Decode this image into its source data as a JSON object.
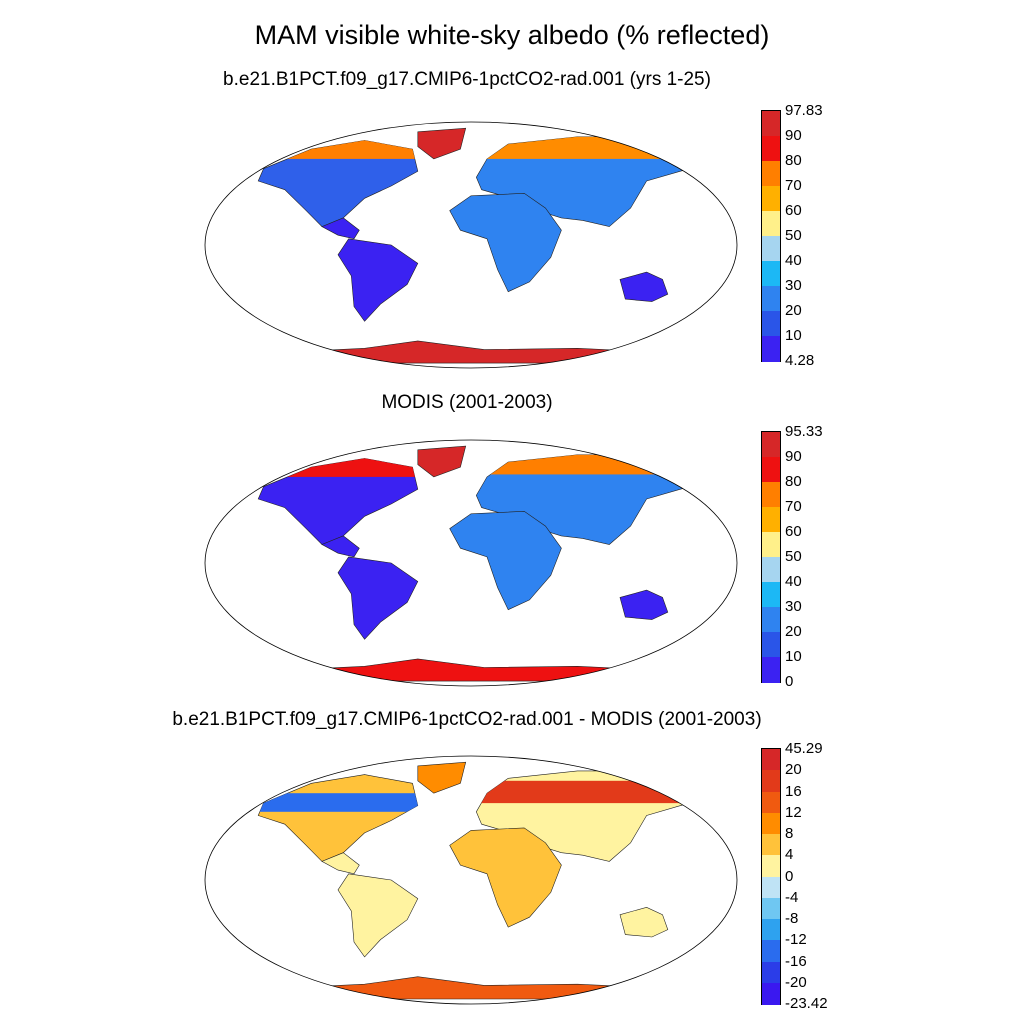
{
  "title": "MAM visible white-sky albedo (% reflected)",
  "panels": [
    {
      "id": "model",
      "title": "b.e21.B1PCT.f09_g17.CMIP6-1pctCO2-rad.001 (yrs 1-25)",
      "colorbar": {
        "labels": [
          "97.83",
          "90",
          "80",
          "70",
          "60",
          "50",
          "40",
          "30",
          "20",
          "10",
          "4.28"
        ],
        "colors": [
          "#d62728",
          "#ee1111",
          "#ff7f00",
          "#ffb000",
          "#fff08a",
          "#a6d5f0",
          "#1cb8f5",
          "#2f83f0",
          "#2a55e8",
          "#3b22f2"
        ]
      }
    },
    {
      "id": "obs",
      "title": "MODIS (2001-2003)",
      "colorbar": {
        "labels": [
          "95.33",
          "90",
          "80",
          "70",
          "60",
          "50",
          "40",
          "30",
          "20",
          "10",
          "0"
        ],
        "colors": [
          "#d62728",
          "#ee1111",
          "#ff7f00",
          "#ffb000",
          "#fff08a",
          "#a6d5f0",
          "#1cb8f5",
          "#2f83f0",
          "#2a55e8",
          "#3b22f2"
        ]
      }
    },
    {
      "id": "diff",
      "title": "b.e21.B1PCT.f09_g17.CMIP6-1pctCO2-rad.001 - MODIS (2001-2003)",
      "colorbar": {
        "labels": [
          "45.29",
          "20",
          "16",
          "12",
          "8",
          "4",
          "0",
          "-4",
          "-8",
          "-12",
          "-16",
          "-20",
          "-23.42"
        ],
        "colors": [
          "#d62728",
          "#e23a1a",
          "#f05a10",
          "#ff8c00",
          "#ffc23a",
          "#fff3a0",
          "#bfe3f5",
          "#6fc7f2",
          "#2ea2ef",
          "#2a6cee",
          "#2b3de8",
          "#3a18f0"
        ]
      }
    }
  ]
}
